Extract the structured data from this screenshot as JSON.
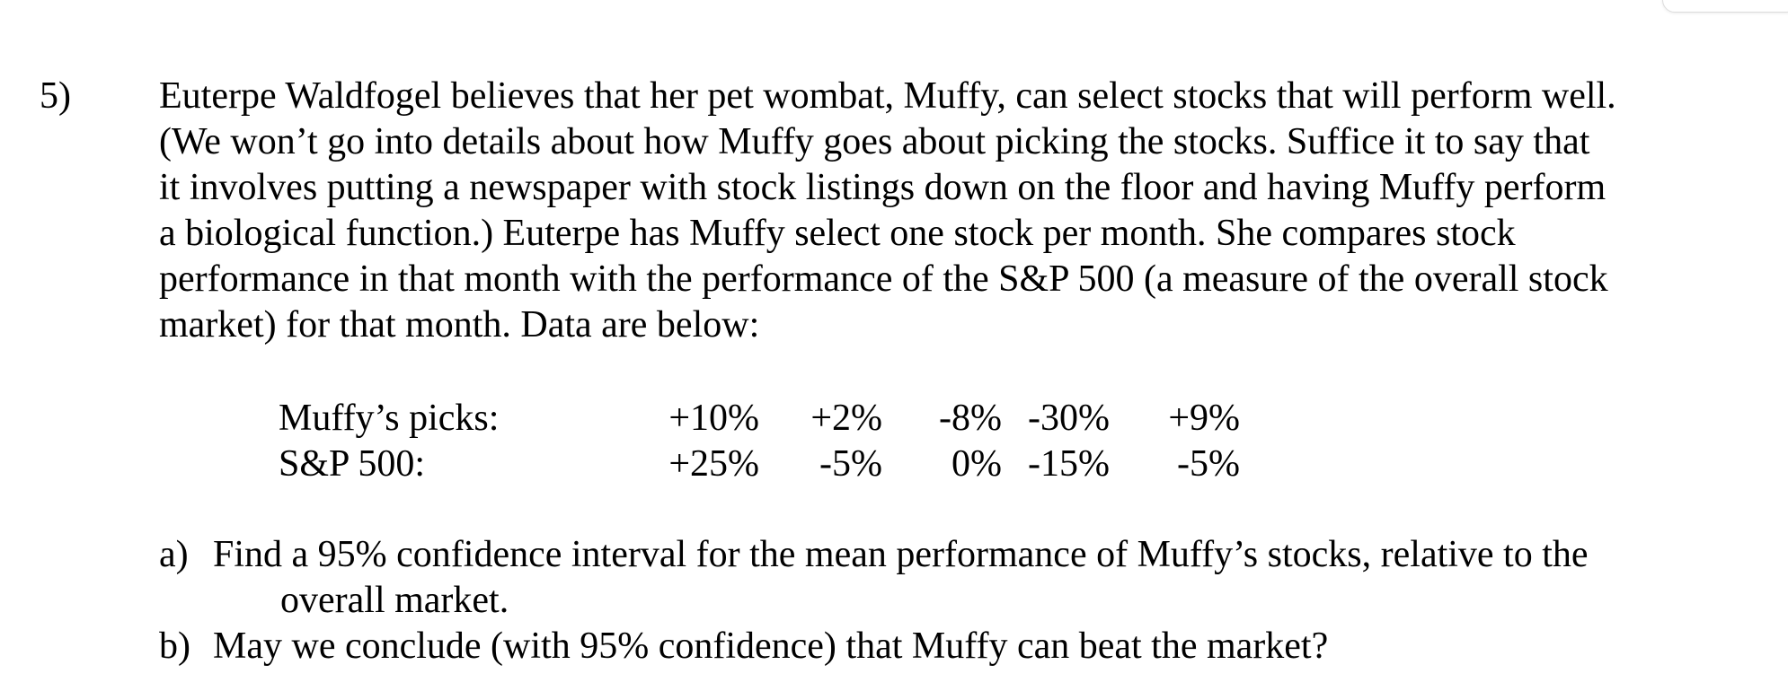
{
  "problem": {
    "number": "5)",
    "lines": [
      "Euterpe Waldfogel believes that her pet wombat, Muffy, can select stocks that will perform well.",
      "(We won’t go into details about how Muffy goes about picking the stocks.  Suffice it to say that",
      "it involves putting a newspaper with stock listings down on the floor and having Muffy perform",
      "a biological function.)  Euterpe has Muffy select one stock per month.  She compares stock",
      "performance in that month with the performance of the S&P 500 (a measure of the overall stock",
      "market) for that month.  Data are below:"
    ]
  },
  "table": {
    "rows": [
      {
        "label": "Muffy’s picks:",
        "values": [
          "+10%",
          "+2%",
          "-8%",
          "-30%",
          "+9%"
        ]
      },
      {
        "label": "S&P 500:",
        "values": [
          "+25%",
          "-5%",
          "0%",
          "-15%",
          "-5%"
        ]
      }
    ]
  },
  "questions": [
    {
      "letter": "a)",
      "line1": "Find a 95% confidence interval for the mean performance of Muffy’s stocks, relative to the",
      "line2": "overall market."
    },
    {
      "letter": "b)",
      "line1": "May we conclude (with 95% confidence) that Muffy can beat the market?",
      "line2": ""
    }
  ]
}
